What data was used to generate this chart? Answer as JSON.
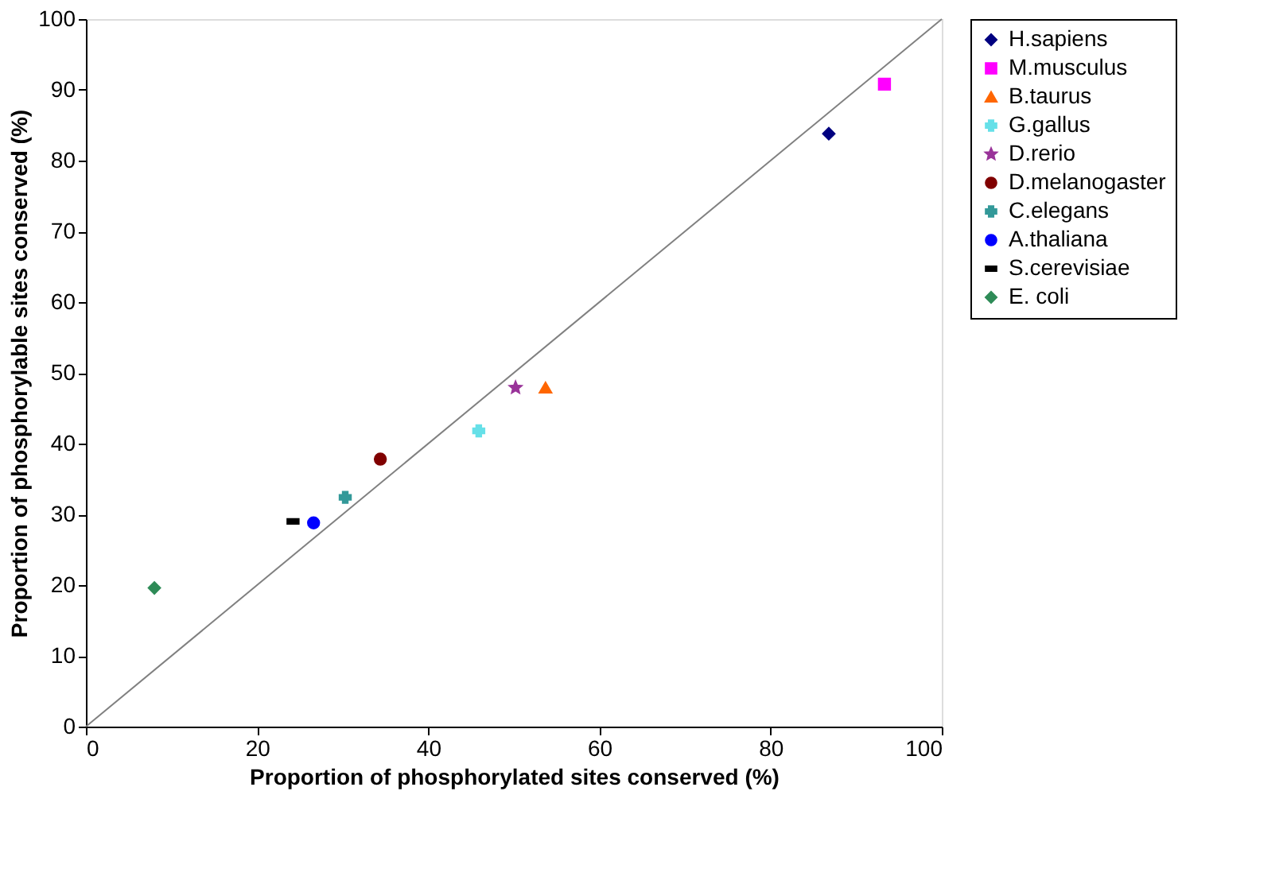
{
  "chart_data": {
    "type": "scatter",
    "xlabel": "Proportion of phosphorylated sites conserved (%)",
    "ylabel": "Proportion of phosphorylable sites conserved (%)",
    "xlim": [
      0,
      100
    ],
    "ylim": [
      0,
      100
    ],
    "xticks": [
      0,
      20,
      40,
      60,
      80,
      100
    ],
    "yticks": [
      0,
      10,
      20,
      30,
      40,
      50,
      60,
      70,
      80,
      90,
      100
    ],
    "grid": false,
    "legend": "right",
    "series": [
      {
        "type": "line",
        "color": "#808080",
        "x": [
          0,
          100
        ],
        "values": [
          0,
          100
        ],
        "marker": "none"
      },
      {
        "name": "H.sapiens",
        "color": "#000080",
        "x": [
          86.8
        ],
        "values": [
          83.8
        ],
        "marker": "diamond"
      },
      {
        "name": "M.musculus",
        "color": "#ff00ff",
        "x": [
          93.3
        ],
        "values": [
          90.8
        ],
        "marker": "square"
      },
      {
        "name": "B.taurus",
        "color": "#ff6600",
        "x": [
          53.7
        ],
        "values": [
          47.9
        ],
        "marker": "triangle"
      },
      {
        "name": "G.gallus",
        "color": "#66e0e8",
        "x": [
          45.9
        ],
        "values": [
          41.8
        ],
        "marker": "cross"
      },
      {
        "name": "D.rerio",
        "color": "#993399",
        "x": [
          50.2
        ],
        "values": [
          47.9
        ],
        "marker": "star"
      },
      {
        "name": "D.melanogaster",
        "color": "#800000",
        "x": [
          34.4
        ],
        "values": [
          37.8
        ],
        "marker": "circle"
      },
      {
        "name": "C.elegans",
        "color": "#339999",
        "x": [
          30.3
        ],
        "values": [
          32.4
        ],
        "marker": "cross"
      },
      {
        "name": "A.thaliana",
        "color": "#0000ff",
        "x": [
          26.6
        ],
        "values": [
          28.8
        ],
        "marker": "circle"
      },
      {
        "name": "S.cerevisiae",
        "color": "#000000",
        "x": [
          24.2
        ],
        "values": [
          29.0
        ]
      },
      {
        "name": "E. coli",
        "color": "#2e8b57",
        "x": [
          8.0
        ],
        "values": [
          19.6
        ],
        "marker": "diamond"
      }
    ]
  }
}
